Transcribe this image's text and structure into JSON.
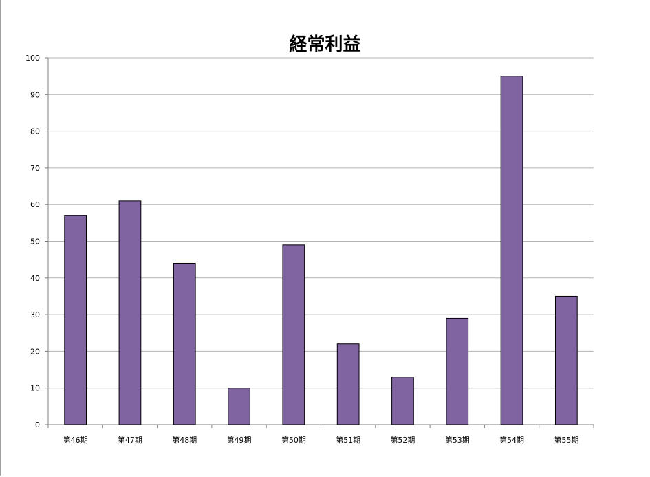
{
  "chart_data": {
    "type": "bar",
    "title": "経常利益",
    "xlabel": "",
    "ylabel": "",
    "categories": [
      "第46期",
      "第47期",
      "第48期",
      "第49期",
      "第50期",
      "第51期",
      "第52期",
      "第53期",
      "第54期",
      "第55期"
    ],
    "values": [
      57,
      61,
      44,
      10,
      49,
      22,
      13,
      29,
      95,
      35
    ],
    "ylim": [
      0,
      100
    ],
    "yticks": [
      "0",
      "10",
      "20",
      "30",
      "40",
      "50",
      "60",
      "70",
      "80",
      "90",
      "100"
    ],
    "grid": true,
    "legend": "none",
    "colors": {
      "bar": "#8064a2",
      "bar_edge": "#000000",
      "grid": "#b3b3b3"
    }
  }
}
